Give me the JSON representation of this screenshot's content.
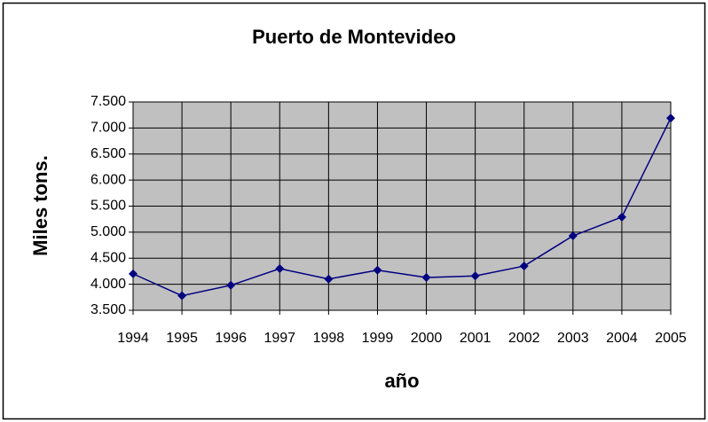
{
  "chart_data": {
    "type": "line",
    "title": "Puerto de Montevideo",
    "xlabel": "año",
    "ylabel": "Miles tons.",
    "categories": [
      "1994",
      "1995",
      "1996",
      "1997",
      "1998",
      "1999",
      "2000",
      "2001",
      "2002",
      "2003",
      "2004",
      "2005"
    ],
    "series": [
      {
        "color": "#000080",
        "values": [
          4200,
          3780,
          3980,
          4300,
          4100,
          4270,
          4130,
          4160,
          4350,
          4930,
          5290,
          7190
        ]
      }
    ],
    "ylim": [
      3500,
      7500
    ],
    "yticks": [
      {
        "value": 3500,
        "label": "3.500"
      },
      {
        "value": 4000,
        "label": "4.000"
      },
      {
        "value": 4500,
        "label": "4.500"
      },
      {
        "value": 5000,
        "label": "5.000"
      },
      {
        "value": 5500,
        "label": "5.500"
      },
      {
        "value": 6000,
        "label": "6.000"
      },
      {
        "value": 6500,
        "label": "6.500"
      },
      {
        "value": 7000,
        "label": "7.000"
      },
      {
        "value": 7500,
        "label": "7.500"
      }
    ],
    "grid": true,
    "plot_background": "#c0c0c0"
  }
}
